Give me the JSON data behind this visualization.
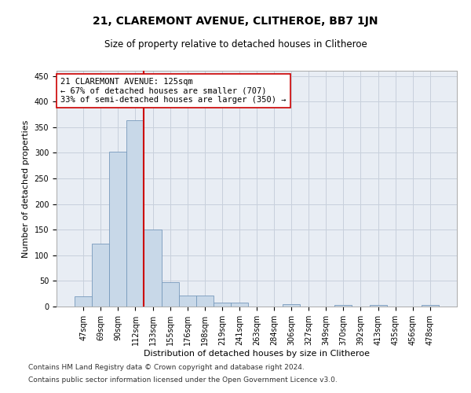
{
  "title": "21, CLAREMONT AVENUE, CLITHEROE, BB7 1JN",
  "subtitle": "Size of property relative to detached houses in Clitheroe",
  "xlabel": "Distribution of detached houses by size in Clitheroe",
  "ylabel": "Number of detached properties",
  "categories": [
    "47sqm",
    "69sqm",
    "90sqm",
    "112sqm",
    "133sqm",
    "155sqm",
    "176sqm",
    "198sqm",
    "219sqm",
    "241sqm",
    "263sqm",
    "284sqm",
    "306sqm",
    "327sqm",
    "349sqm",
    "370sqm",
    "392sqm",
    "413sqm",
    "435sqm",
    "456sqm",
    "478sqm"
  ],
  "values": [
    20,
    122,
    302,
    363,
    150,
    47,
    22,
    22,
    8,
    7,
    0,
    0,
    5,
    0,
    0,
    3,
    0,
    3,
    0,
    0,
    3
  ],
  "bar_color": "#c8d8e8",
  "bar_edge_color": "#7799bb",
  "vline_color": "#cc0000",
  "annotation_text": "21 CLAREMONT AVENUE: 125sqm\n← 67% of detached houses are smaller (707)\n33% of semi-detached houses are larger (350) →",
  "annotation_box_color": "#ffffff",
  "annotation_box_edge_color": "#cc0000",
  "ylim": [
    0,
    460
  ],
  "yticks": [
    0,
    50,
    100,
    150,
    200,
    250,
    300,
    350,
    400,
    450
  ],
  "grid_color": "#c8d0dc",
  "background_color": "#e8edf4",
  "footer_line1": "Contains HM Land Registry data © Crown copyright and database right 2024.",
  "footer_line2": "Contains public sector information licensed under the Open Government Licence v3.0.",
  "title_fontsize": 10,
  "subtitle_fontsize": 8.5,
  "xlabel_fontsize": 8,
  "ylabel_fontsize": 8,
  "tick_fontsize": 7,
  "annotation_fontsize": 7.5,
  "footer_fontsize": 6.5
}
